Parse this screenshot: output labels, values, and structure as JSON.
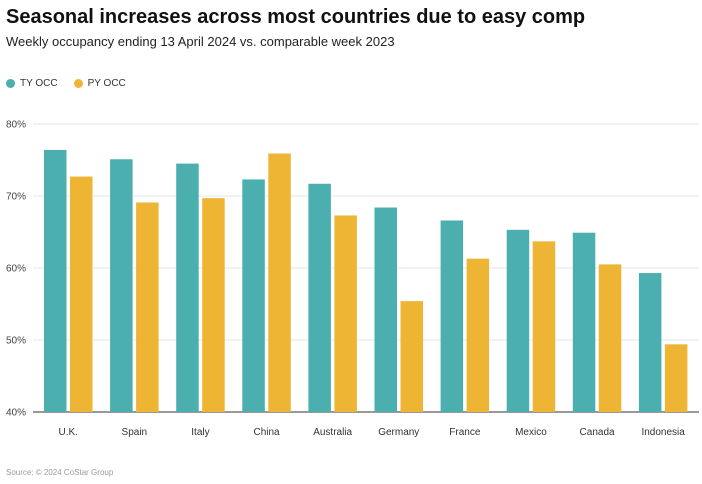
{
  "header": {
    "title": "Seasonal increases across most countries due to easy comp",
    "subtitle": "Weekly occupancy ending 13 April 2024 vs. comparable week 2023"
  },
  "legend": [
    {
      "label": "TY OCC",
      "color": "#4aafae"
    },
    {
      "label": "PY OCC",
      "color": "#eeb534"
    }
  ],
  "footer": {
    "source": "Source: © 2024 CoStar Group"
  },
  "chart_data": {
    "type": "bar",
    "title": "Seasonal increases across most countries due to easy comp",
    "xlabel": "",
    "ylabel": "",
    "ylim": [
      40,
      80
    ],
    "yticks": [
      40,
      50,
      60,
      70,
      80
    ],
    "ytick_labels": [
      "40%",
      "50%",
      "60%",
      "70%",
      "80%"
    ],
    "categories": [
      "U.K.",
      "Spain",
      "Italy",
      "China",
      "Australia",
      "Germany",
      "France",
      "Mexico",
      "Canada",
      "Indonesia"
    ],
    "series": [
      {
        "name": "TY OCC",
        "color": "#4aafae",
        "values": [
          76.4,
          75.1,
          74.5,
          72.3,
          71.7,
          68.4,
          66.6,
          65.3,
          64.9,
          59.3
        ]
      },
      {
        "name": "PY OCC",
        "color": "#eeb534",
        "values": [
          72.7,
          69.1,
          69.7,
          75.9,
          67.3,
          55.4,
          61.3,
          63.7,
          60.5,
          49.4
        ]
      }
    ],
    "legend_position": "top-left"
  }
}
